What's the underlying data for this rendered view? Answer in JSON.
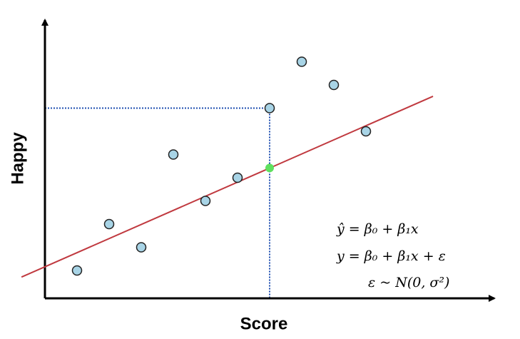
{
  "chart_data": {
    "type": "scatter",
    "x_label": "Score",
    "y_label": "Happy",
    "xlim": [
      0,
      14
    ],
    "ylim": [
      0,
      12
    ],
    "x": [
      1,
      2,
      3,
      4,
      5,
      6,
      7,
      8,
      9,
      10
    ],
    "y": [
      1.2,
      3.2,
      2.2,
      6.2,
      4.2,
      5.2,
      8.2,
      10.2,
      9.2,
      7.2
    ],
    "color": "#a8d4e6",
    "regression": {
      "intercept": 1.36,
      "slope": 0.608,
      "x_start": -0.73,
      "x_end": 12.09,
      "color": "#c0393f"
    },
    "highlight": {
      "x": 7,
      "y": 5.62,
      "color": "#5fe05f"
    },
    "guide": {
      "x": 7,
      "y": 8.2,
      "color": "#1f4fb0"
    },
    "equations": [
      "ŷ = β₀ + β₁x",
      "y = β₀ + β₁x + ε",
      "ε ~ N(0, σ²)"
    ]
  }
}
